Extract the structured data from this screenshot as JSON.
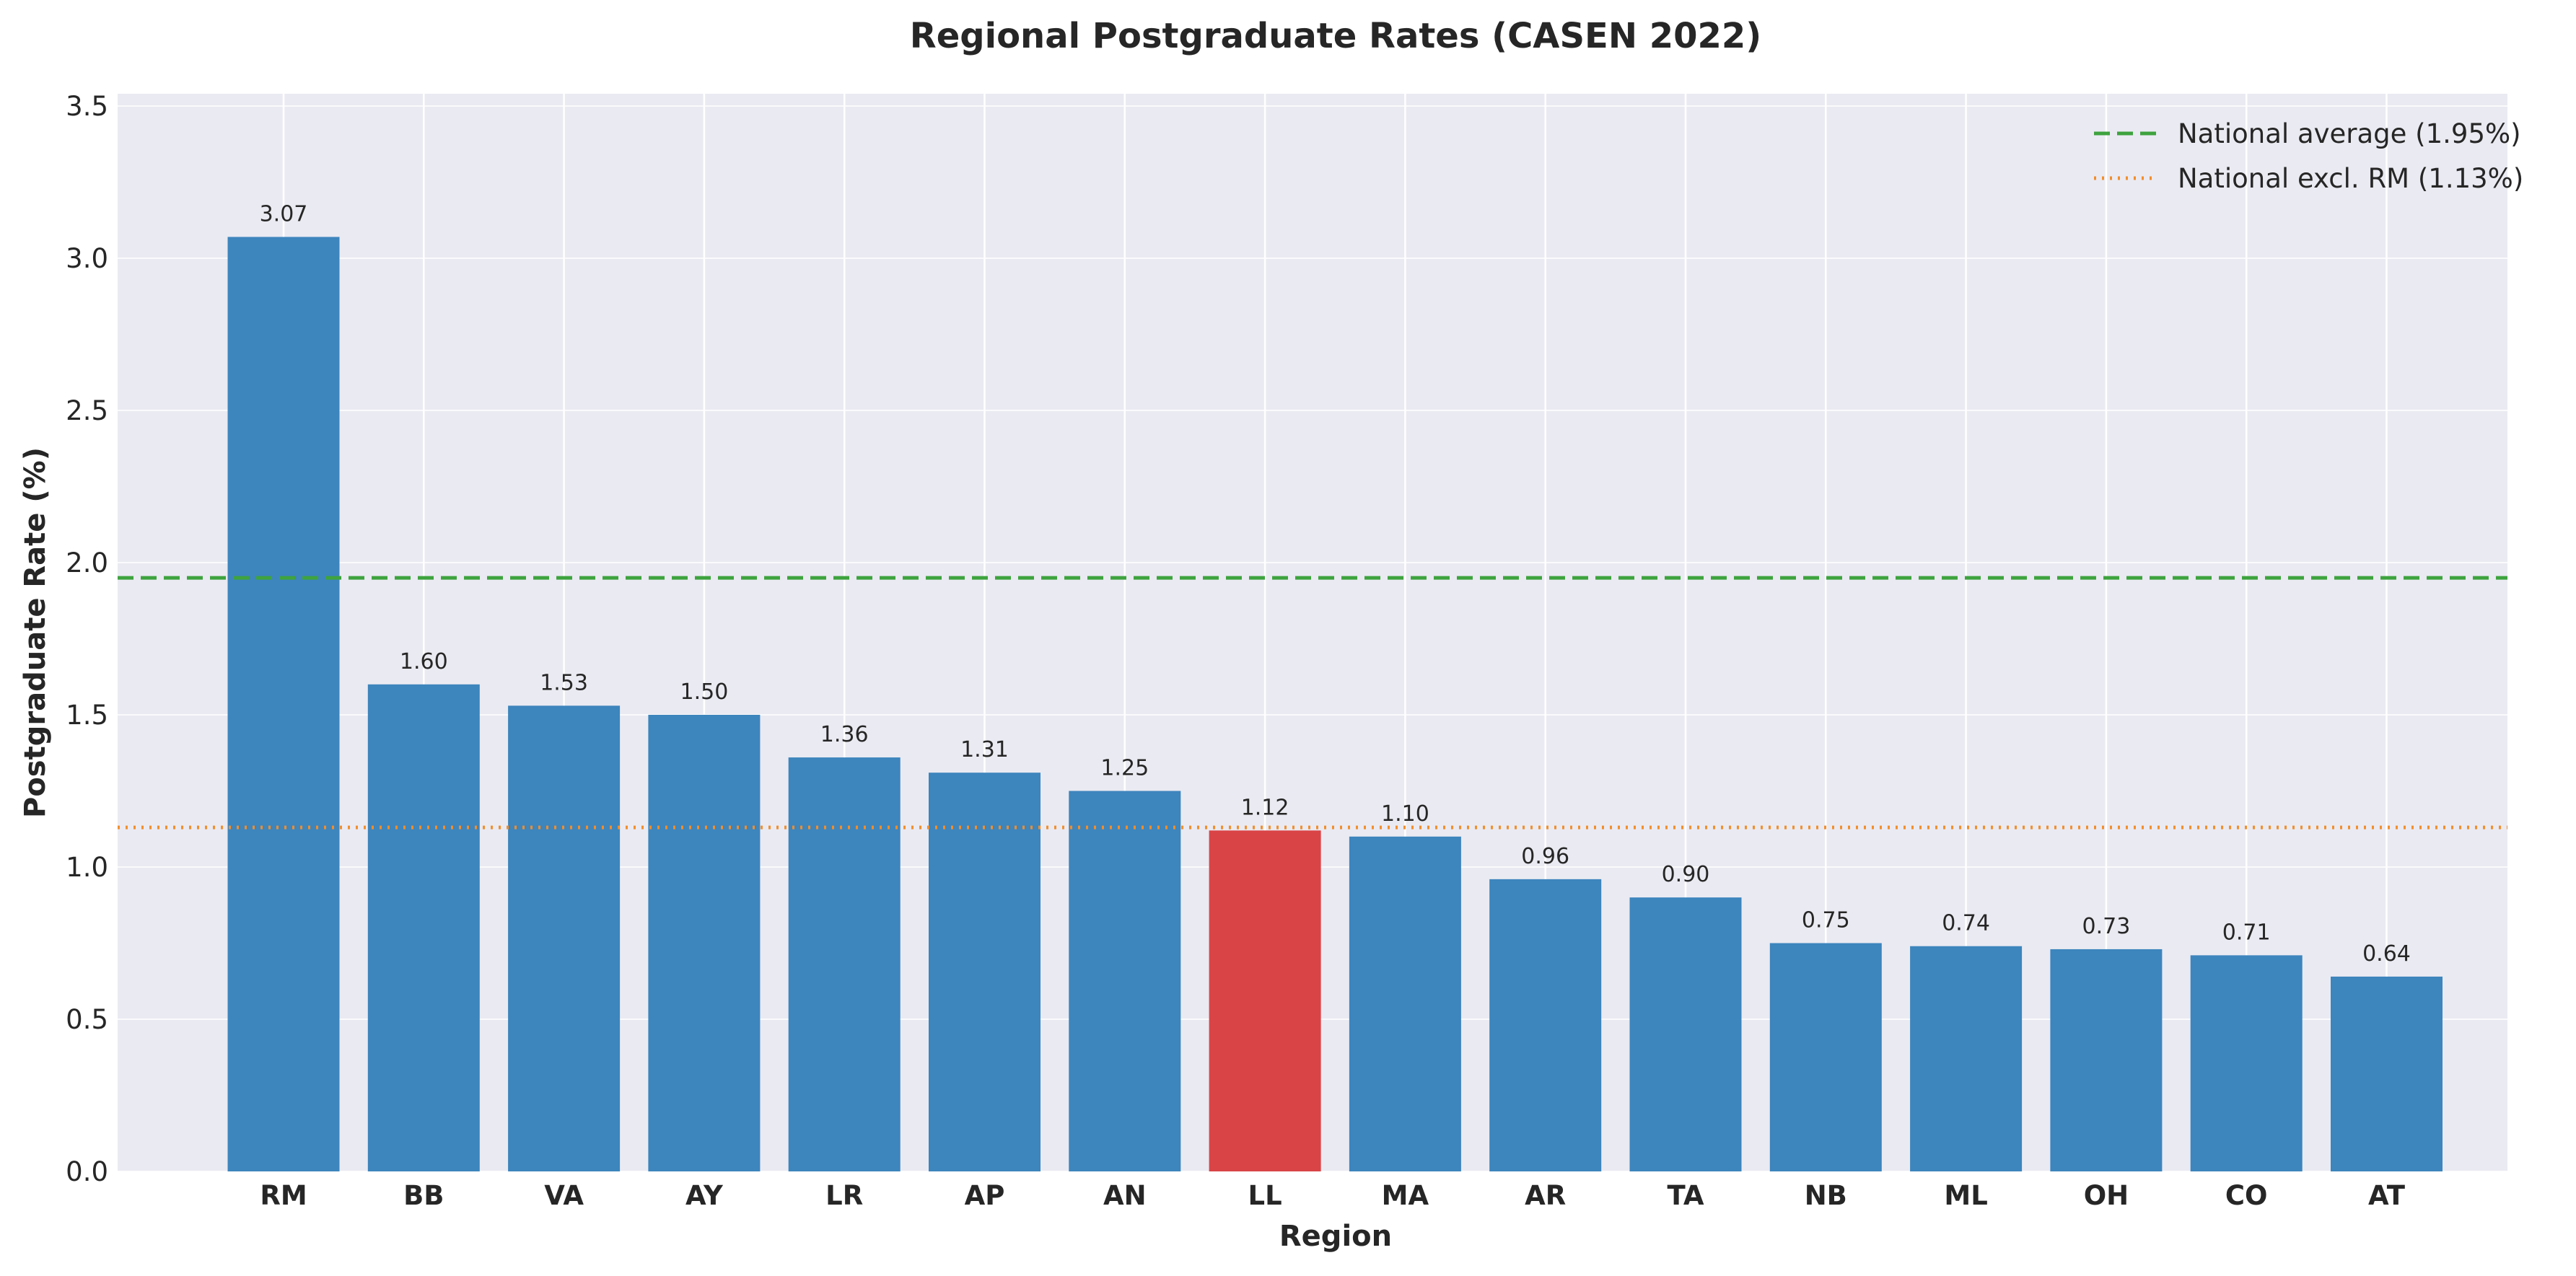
{
  "chart_data": {
    "type": "bar",
    "title": "Regional Postgraduate Rates (CASEN 2022)",
    "xlabel": "Region",
    "ylabel": "Postgraduate Rate (%)",
    "categories": [
      "RM",
      "BB",
      "VA",
      "AY",
      "LR",
      "AP",
      "AN",
      "LL",
      "MA",
      "AR",
      "TA",
      "NB",
      "ML",
      "OH",
      "CO",
      "AT"
    ],
    "values": [
      3.07,
      1.6,
      1.53,
      1.5,
      1.36,
      1.31,
      1.25,
      1.12,
      1.1,
      0.96,
      0.9,
      0.75,
      0.74,
      0.73,
      0.71,
      0.64
    ],
    "data_labels": [
      "3.07",
      "1.60",
      "1.53",
      "1.50",
      "1.36",
      "1.31",
      "1.25",
      "1.12",
      "1.10",
      "0.96",
      "0.90",
      "0.75",
      "0.74",
      "0.73",
      "0.71",
      "0.64"
    ],
    "highlight_category": "LL",
    "yticks": [
      0.0,
      0.5,
      1.0,
      1.5,
      2.0,
      2.5,
      3.0,
      3.5
    ],
    "ytick_labels": [
      "0.0",
      "0.5",
      "1.0",
      "1.5",
      "2.0",
      "2.5",
      "3.0",
      "3.5"
    ],
    "ylim": [
      0,
      3.5
    ],
    "grid": true,
    "legend_position": "top-right",
    "reference_lines": [
      {
        "name": "National average (1.95%)",
        "value": 1.95,
        "style": "dashed",
        "color": "#3ea33e"
      },
      {
        "name": "National excl. RM (1.13%)",
        "value": 1.13,
        "style": "dotted",
        "color": "#f28e2b"
      }
    ],
    "colors": {
      "bar": "#3d85bd",
      "highlight": "#d94446",
      "plot_background": "#eaeaf2",
      "grid": "#ffffff"
    }
  }
}
